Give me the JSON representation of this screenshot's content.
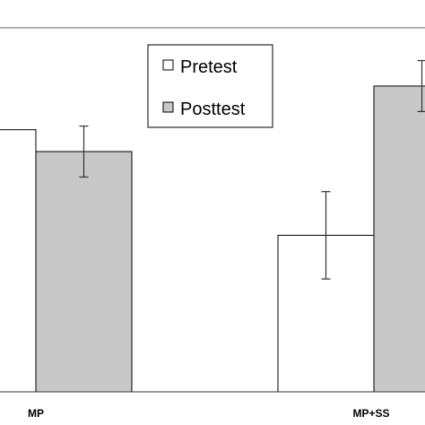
{
  "chart_data": {
    "type": "bar",
    "categories": [
      "MP",
      "MP+SS"
    ],
    "series": [
      {
        "name": "Pretest",
        "color": "#ffffff",
        "values": [
          0.72,
          0.43
        ],
        "error": [
          null,
          0.12
        ]
      },
      {
        "name": "Posttest",
        "color": "#c8c8c8",
        "values": [
          0.66,
          0.84
        ],
        "error": [
          0.07,
          0.07
        ]
      }
    ],
    "legend_position": "top-center",
    "grid": false,
    "ylim": [
      0,
      1
    ]
  }
}
